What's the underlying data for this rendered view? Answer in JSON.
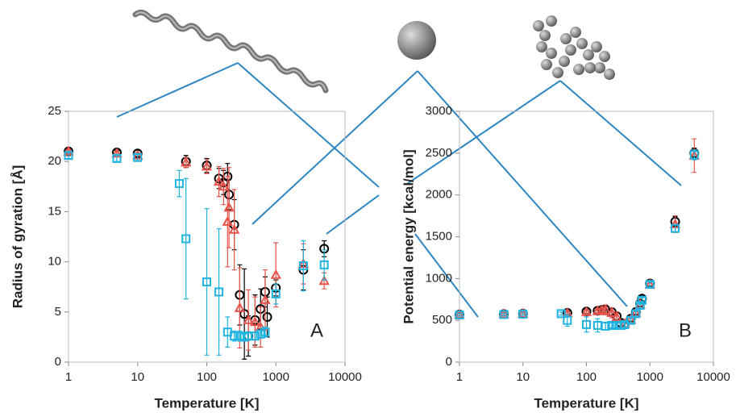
{
  "chart_data": [
    {
      "type": "scatter",
      "xlabel": "Temperature [K]",
      "ylabel": "Radius of gyration [Å]",
      "annotation": "A",
      "xscale": "log",
      "xlim": [
        1,
        10000
      ],
      "xticks": [
        1,
        10,
        100,
        1000,
        10000
      ],
      "ylim": [
        0,
        25
      ],
      "yticks": [
        0,
        5,
        10,
        15,
        20,
        25
      ],
      "grid": false,
      "series": [
        {
          "color": "#000000",
          "marker": "circle",
          "x": [
            1,
            5,
            10,
            50,
            100,
            150,
            175,
            200,
            210,
            250,
            300,
            350,
            400,
            500,
            600,
            700,
            750,
            1000,
            2500,
            5000
          ],
          "values": [
            21.0,
            20.9,
            20.8,
            20.0,
            19.6,
            18.3,
            17.9,
            18.5,
            16.7,
            13.7,
            6.7,
            4.8,
            2.6,
            4.2,
            5.3,
            7.0,
            4.5,
            7.4,
            9.2,
            11.3
          ],
          "errors": [
            0.2,
            0.2,
            0.3,
            0.6,
            0.7,
            1.0,
            1.2,
            1.3,
            1.5,
            2.5,
            3.0,
            4.5,
            2.0,
            2.5,
            2.0,
            1.5,
            2.0,
            0.8,
            2.0,
            0.8
          ]
        },
        {
          "color": "#e8534b",
          "marker": "triangle",
          "x": [
            1,
            5,
            10,
            50,
            100,
            150,
            175,
            200,
            210,
            250,
            300,
            400,
            500,
            600,
            700,
            1000,
            2500,
            5000
          ],
          "values": [
            21.0,
            20.8,
            20.6,
            19.9,
            19.5,
            18.0,
            17.5,
            14.0,
            15.4,
            13.2,
            5.4,
            4.2,
            4.0,
            3.5,
            6.2,
            8.7,
            9.8,
            8.1
          ],
          "errors": [
            0.2,
            0.2,
            0.3,
            0.5,
            0.7,
            1.5,
            1.8,
            4.5,
            4.0,
            4.0,
            4.0,
            3.0,
            2.5,
            2.0,
            3.0,
            3.2,
            2.0,
            0.8
          ]
        },
        {
          "color": "#1fb3e0",
          "marker": "square",
          "x": [
            1,
            5,
            10,
            40,
            50,
            100,
            150,
            200,
            250,
            300,
            350,
            400,
            500,
            600,
            700,
            1000,
            2500,
            5000
          ],
          "values": [
            20.6,
            20.3,
            20.4,
            17.8,
            12.3,
            8.0,
            7.0,
            3.0,
            2.6,
            2.6,
            2.5,
            2.6,
            2.6,
            2.8,
            3.0,
            6.8,
            9.6,
            9.7
          ],
          "errors": [
            0.3,
            0.3,
            0.3,
            1.3,
            6.0,
            7.3,
            6.3,
            1.5,
            0.5,
            0.5,
            0.4,
            0.4,
            0.4,
            0.4,
            0.5,
            1.0,
            2.5,
            1.5
          ]
        }
      ]
    },
    {
      "type": "scatter",
      "xlabel": "Temperature [K]",
      "ylabel": "Potential energy [kcal/mol]",
      "annotation": "B",
      "xscale": "log",
      "xlim": [
        1,
        10000
      ],
      "xticks": [
        1,
        10,
        100,
        1000,
        10000
      ],
      "ylim": [
        0,
        3000
      ],
      "yticks": [
        0,
        500,
        1000,
        1500,
        2000,
        2500,
        3000
      ],
      "grid": false,
      "series": [
        {
          "color": "#000000",
          "marker": "circle",
          "x": [
            1,
            5,
            10,
            50,
            100,
            150,
            175,
            200,
            250,
            300,
            350,
            400,
            500,
            600,
            700,
            750,
            1000,
            2500,
            5000
          ],
          "values": [
            570,
            575,
            580,
            590,
            605,
            615,
            625,
            630,
            600,
            550,
            470,
            450,
            520,
            600,
            700,
            760,
            940,
            1680,
            2500
          ],
          "errors": [
            15,
            15,
            15,
            20,
            25,
            30,
            30,
            40,
            50,
            50,
            40,
            35,
            30,
            30,
            30,
            30,
            30,
            60,
            60
          ]
        },
        {
          "color": "#e8534b",
          "marker": "triangle",
          "x": [
            1,
            5,
            10,
            50,
            100,
            150,
            175,
            200,
            250,
            300,
            400,
            500,
            600,
            700,
            1000,
            2500,
            5000
          ],
          "values": [
            570,
            575,
            580,
            585,
            600,
            610,
            620,
            625,
            590,
            540,
            460,
            510,
            590,
            690,
            930,
            1650,
            2470
          ],
          "errors": [
            15,
            15,
            15,
            20,
            25,
            30,
            40,
            60,
            60,
            60,
            40,
            35,
            30,
            30,
            30,
            100,
            200
          ]
        },
        {
          "color": "#1fb3e0",
          "marker": "square",
          "x": [
            1,
            5,
            10,
            40,
            50,
            100,
            150,
            200,
            250,
            300,
            350,
            400,
            500,
            600,
            700,
            750,
            1000,
            2500,
            5000
          ],
          "values": [
            565,
            570,
            575,
            580,
            500,
            450,
            440,
            430,
            440,
            440,
            440,
            450,
            500,
            580,
            680,
            740,
            930,
            1600,
            2480
          ],
          "errors": [
            15,
            15,
            15,
            20,
            70,
            90,
            80,
            40,
            30,
            30,
            30,
            30,
            30,
            30,
            30,
            30,
            30,
            40,
            60
          ]
        }
      ]
    }
  ]
}
